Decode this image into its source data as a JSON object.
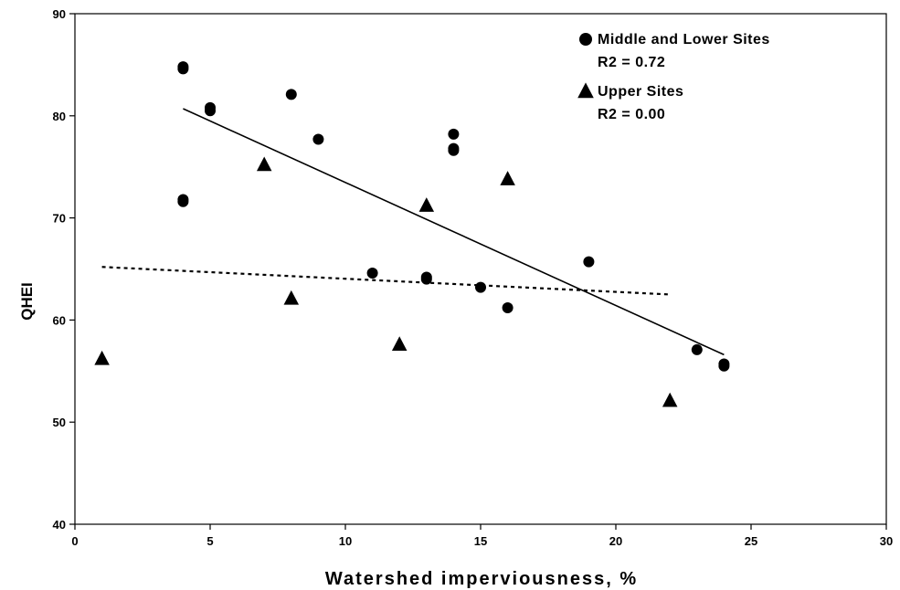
{
  "chart_data": {
    "type": "scatter",
    "xlabel": "Watershed imperviousness, %",
    "ylabel": "QHEI",
    "xlim": [
      0,
      30
    ],
    "ylim": [
      40,
      90
    ],
    "x_ticks": [
      0,
      5,
      10,
      15,
      20,
      25,
      30
    ],
    "y_ticks": [
      40,
      50,
      60,
      70,
      80,
      90
    ],
    "grid": false,
    "legend_position": "top-right",
    "series": [
      {
        "name": "Middle and Lower Sites",
        "marker": "circle",
        "r2_label": "R2 = 0.72",
        "color": "#000000",
        "points": [
          [
            4,
            84.8
          ],
          [
            4,
            84.6
          ],
          [
            4,
            71.8
          ],
          [
            4,
            71.6
          ],
          [
            5,
            80.8
          ],
          [
            5,
            80.5
          ],
          [
            8,
            82.1
          ],
          [
            9,
            77.7
          ],
          [
            11,
            64.6
          ],
          [
            13,
            64.2
          ],
          [
            13,
            64.0
          ],
          [
            14,
            78.2
          ],
          [
            14,
            76.8
          ],
          [
            14,
            76.6
          ],
          [
            15,
            63.2
          ],
          [
            16,
            61.2
          ],
          [
            19,
            65.7
          ],
          [
            23,
            57.1
          ],
          [
            24,
            55.7
          ],
          [
            24,
            55.5
          ]
        ],
        "trendline": {
          "style": "solid",
          "from": [
            4,
            80.7
          ],
          "to": [
            24,
            56.6
          ]
        }
      },
      {
        "name": "Upper Sites",
        "marker": "triangle",
        "r2_label": "R2 = 0.00",
        "color": "#000000",
        "points": [
          [
            1,
            56.2
          ],
          [
            7,
            75.2
          ],
          [
            8,
            62.1
          ],
          [
            12,
            57.6
          ],
          [
            13,
            71.2
          ],
          [
            16,
            73.8
          ],
          [
            22,
            52.1
          ]
        ],
        "trendline": {
          "style": "dashed",
          "from": [
            1,
            65.2
          ],
          "to": [
            22,
            62.5
          ]
        }
      }
    ]
  }
}
